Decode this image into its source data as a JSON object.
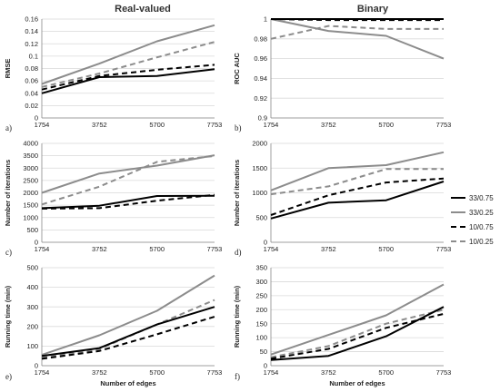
{
  "figure": {
    "column_titles": [
      "Real-valued",
      "Binary"
    ]
  },
  "styles": {
    "33/0.75": {
      "color": "#000000",
      "dash": "none"
    },
    "33/0.25": {
      "color": "#8c8c8c",
      "dash": "none"
    },
    "10/0.75": {
      "color": "#000000",
      "dash": "6,4"
    },
    "10/0.25": {
      "color": "#8c8c8c",
      "dash": "6,4"
    }
  },
  "legend": [
    "33/0.75",
    "33/0.25",
    "10/0.75",
    "10/0.25"
  ],
  "chart_data": [
    {
      "type": "line",
      "panel": "a)",
      "title": "",
      "ylabel": "RMSE",
      "xlabel": "",
      "categories": [
        "1754",
        "3752",
        "5700",
        "7753"
      ],
      "ylim": [
        0,
        0.16
      ],
      "yticks": [
        "0",
        "0.02",
        "0.04",
        "0.06",
        "0.08",
        "0.1",
        "0.12",
        "0.14",
        "0.16"
      ],
      "grid": true,
      "series": [
        {
          "name": "33/0.75",
          "values": [
            0.04,
            0.066,
            0.068,
            0.079
          ]
        },
        {
          "name": "33/0.25",
          "values": [
            0.055,
            0.088,
            0.124,
            0.15
          ]
        },
        {
          "name": "10/0.75",
          "values": [
            0.046,
            0.068,
            0.078,
            0.086
          ]
        },
        {
          "name": "10/0.25",
          "values": [
            0.05,
            0.072,
            0.098,
            0.123
          ]
        }
      ]
    },
    {
      "type": "line",
      "panel": "b)",
      "title": "",
      "ylabel": "ROC AUC",
      "xlabel": "",
      "categories": [
        "1754",
        "3752",
        "5700",
        "7753"
      ],
      "ylim": [
        0.9,
        1
      ],
      "yticks": [
        "0.9",
        "0.92",
        "0.94",
        "0.96",
        "0.98",
        "1"
      ],
      "grid": true,
      "series": [
        {
          "name": "33/0.75",
          "values": [
            1.0,
            1.0,
            1.0,
            1.0
          ]
        },
        {
          "name": "33/0.25",
          "values": [
            1.0,
            0.988,
            0.983,
            0.96
          ]
        },
        {
          "name": "10/0.75",
          "values": [
            1.0,
            0.999,
            0.999,
            0.999
          ]
        },
        {
          "name": "10/0.25",
          "values": [
            0.98,
            0.993,
            0.99,
            0.99
          ]
        }
      ]
    },
    {
      "type": "line",
      "panel": "c)",
      "title": "",
      "ylabel": "Number of iterations",
      "xlabel": "",
      "categories": [
        "1754",
        "3752",
        "5700",
        "7753"
      ],
      "ylim": [
        0,
        4000
      ],
      "yticks": [
        "0",
        "500",
        "1000",
        "1500",
        "2000",
        "2500",
        "3000",
        "3500",
        "4000"
      ],
      "grid": true,
      "series": [
        {
          "name": "33/0.75",
          "values": [
            1380,
            1480,
            1870,
            1880
          ]
        },
        {
          "name": "33/0.25",
          "values": [
            2000,
            2780,
            3100,
            3520
          ]
        },
        {
          "name": "10/0.75",
          "values": [
            1360,
            1380,
            1680,
            1920
          ]
        },
        {
          "name": "10/0.25",
          "values": [
            1530,
            2250,
            3250,
            3490
          ]
        }
      ]
    },
    {
      "type": "line",
      "panel": "d)",
      "title": "",
      "ylabel": "Number of iterations",
      "xlabel": "",
      "categories": [
        "1754",
        "3752",
        "5700",
        "7753"
      ],
      "ylim": [
        0,
        2000
      ],
      "yticks": [
        "0",
        "500",
        "1000",
        "1500",
        "2000"
      ],
      "grid": true,
      "series": [
        {
          "name": "33/0.75",
          "values": [
            480,
            800,
            850,
            1230
          ]
        },
        {
          "name": "33/0.25",
          "values": [
            1050,
            1500,
            1560,
            1820
          ]
        },
        {
          "name": "10/0.75",
          "values": [
            550,
            950,
            1210,
            1290
          ]
        },
        {
          "name": "10/0.25",
          "values": [
            970,
            1130,
            1480,
            1480
          ]
        }
      ]
    },
    {
      "type": "line",
      "panel": "e)",
      "title": "",
      "ylabel": "Running time (min)",
      "xlabel": "Number of edges",
      "categories": [
        "1754",
        "3752",
        "5700",
        "7753"
      ],
      "ylim": [
        0,
        500
      ],
      "yticks": [
        "0",
        "100",
        "200",
        "300",
        "400",
        "500"
      ],
      "grid": true,
      "series": [
        {
          "name": "33/0.75",
          "values": [
            50,
            90,
            210,
            300
          ]
        },
        {
          "name": "33/0.25",
          "values": [
            55,
            155,
            280,
            460
          ]
        },
        {
          "name": "10/0.75",
          "values": [
            35,
            75,
            160,
            250
          ]
        },
        {
          "name": "10/0.25",
          "values": [
            40,
            85,
            210,
            335
          ]
        }
      ]
    },
    {
      "type": "line",
      "panel": "f)",
      "title": "",
      "ylabel": "Running time (min)",
      "xlabel": "Number of edges",
      "categories": [
        "1754",
        "3752",
        "5700",
        "7753"
      ],
      "ylim": [
        0,
        350
      ],
      "yticks": [
        "0",
        "50",
        "100",
        "150",
        "200",
        "250",
        "300",
        "350"
      ],
      "grid": true,
      "series": [
        {
          "name": "33/0.75",
          "values": [
            20,
            35,
            105,
            210
          ]
        },
        {
          "name": "33/0.25",
          "values": [
            40,
            110,
            180,
            290
          ]
        },
        {
          "name": "10/0.75",
          "values": [
            25,
            60,
            135,
            185
          ]
        },
        {
          "name": "10/0.25",
          "values": [
            30,
            70,
            150,
            200
          ]
        }
      ]
    }
  ]
}
